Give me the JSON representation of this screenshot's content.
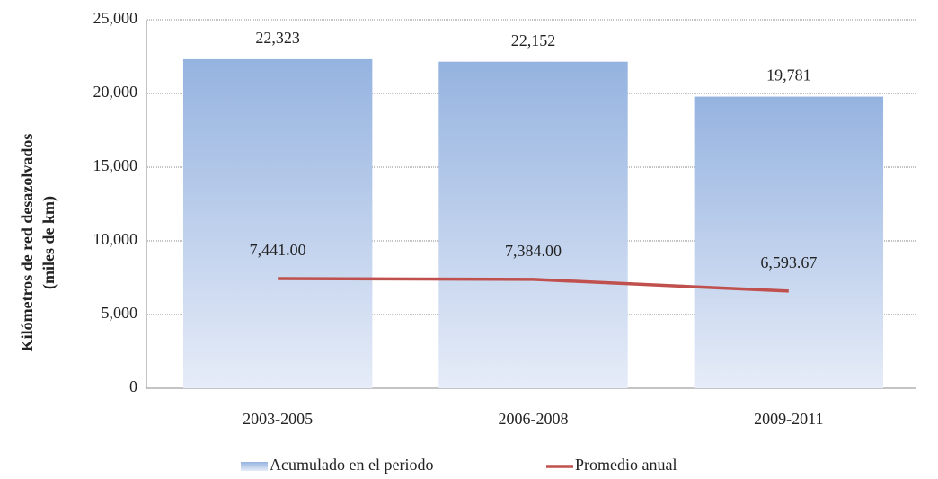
{
  "chart_data": {
    "type": "combo",
    "ylabel": [
      "Kilómetros de red desazolvados",
      "(miles de km)"
    ],
    "categories": [
      "2003-2005",
      "2006-2008",
      "2009-2011"
    ],
    "series": [
      {
        "name": "Acumulado en el periodo",
        "type": "bar",
        "color": "#95b3e0",
        "values": [
          22323,
          22152,
          19781
        ],
        "value_labels": [
          "22,323",
          "22,152",
          "19,781"
        ]
      },
      {
        "name": "Promedio anual",
        "type": "line",
        "color": "#c0504d",
        "values": [
          7441,
          7384,
          6593.67
        ],
        "value_labels": [
          "7,441.00",
          "7,384.00",
          "6,593.67"
        ]
      }
    ],
    "ylim": [
      0,
      25000
    ],
    "yticks": [
      0,
      {
        "value": 5000,
        "label": "5,000"
      },
      {
        "value": 10000,
        "label": "10,000"
      },
      {
        "value": 15000,
        "label": "15,000"
      },
      {
        "value": 20000,
        "label": "20,000"
      },
      {
        "value": 25000,
        "label": "25,000"
      }
    ],
    "grid": true,
    "legend": "bottom"
  }
}
